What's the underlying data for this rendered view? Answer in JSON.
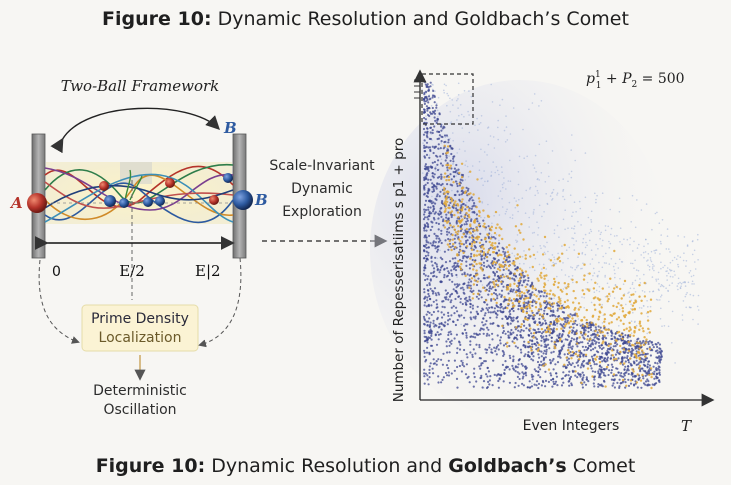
{
  "title_top": {
    "bold": "Figure 10:",
    "rest": "Dynamic Resolution and Goldbach’s Comet"
  },
  "title_bottom": {
    "bold1": "Figure 10:",
    "mid": "Dynamic Resolution and",
    "bold2": "Goldbach’s",
    "end": "Comet"
  },
  "left_panel": {
    "heading": "Two-Ball Framework",
    "ball_a": "A",
    "ball_b_top": "B",
    "ball_b_right": "B",
    "axis_zero": "0",
    "axis_mid": "E/2",
    "axis_end": "E|2",
    "density_box": [
      "Prime Density",
      "Localization"
    ],
    "oscillation": [
      "Deterministic",
      "Oscillation"
    ]
  },
  "middle": {
    "arrow_label": [
      "Scale-Invariant",
      "Dynamic",
      "Exploration"
    ]
  },
  "chart_data": {
    "type": "scatter",
    "title": "",
    "annotation": "p1 + P2 = 500",
    "annotation_parts": {
      "p": "p",
      "sup": "1",
      "sub": "1",
      "plus": " + ",
      "P": "P",
      "sub2": "2",
      "eq": " = 500"
    },
    "xlabel": "Even Integers",
    "x_axis_end_label": "T",
    "ylabel": "Number of Repesserisatiims s  p1 + pro",
    "series": [
      {
        "name": "dense-blue",
        "color": "#3d4790"
      },
      {
        "name": "gold-highlights",
        "color": "#e0a83a"
      },
      {
        "name": "light-haze",
        "color": "#9fb0d8"
      }
    ],
    "description_points": "comet-shaped distribution decaying from top-left to lower-right"
  },
  "colors": {
    "accent_red": "#b5332a",
    "accent_blue": "#2d5aa0",
    "wall_gray": "#8e8e8e",
    "gold": "#e0a83a",
    "dot_blue": "#3d4790"
  }
}
